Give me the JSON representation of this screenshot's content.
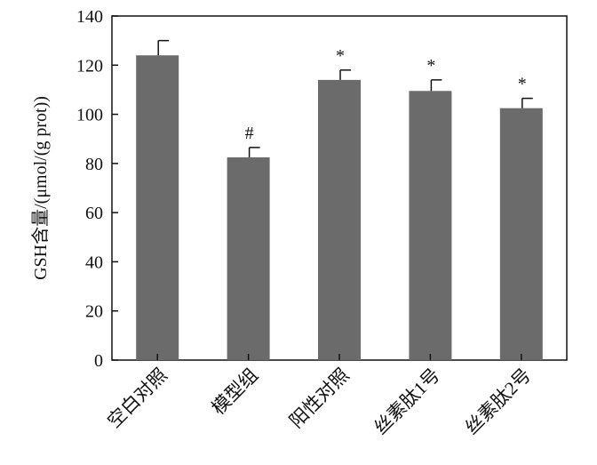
{
  "chart_data": {
    "type": "bar",
    "title": "",
    "xlabel": "",
    "ylabel": "GSH含量/(μmol/(g prot))",
    "ylim": [
      0,
      140
    ],
    "yticks": [
      0,
      20,
      40,
      60,
      80,
      100,
      120,
      140
    ],
    "grid": false,
    "legend": "none",
    "bar_color": "#6b6b6b",
    "categories": [
      "空白对照",
      "模型组",
      "阳性对照",
      "丝素肽1号",
      "丝素肽2号"
    ],
    "values": [
      124,
      82.5,
      114,
      109.5,
      102.5
    ],
    "errors": [
      6,
      4,
      4,
      4.5,
      4
    ],
    "annotations": [
      "",
      "#",
      "*",
      "*",
      "*"
    ]
  }
}
